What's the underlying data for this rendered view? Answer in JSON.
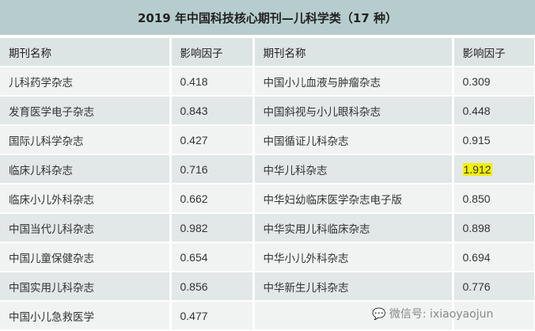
{
  "title": "2019 年中国科技核心期刊—儿科学类（17 种）",
  "headers": [
    "期刊名称",
    "影响因子",
    "期刊名称",
    "影响因子"
  ],
  "rows": [
    [
      "儿科药学杂志",
      "0.418",
      "中国小儿血液与肿瘤杂志",
      "0.309"
    ],
    [
      "发育医学电子杂志",
      "0.843",
      "中国斜视与小儿眼科杂志",
      "0.448"
    ],
    [
      "国际儿科学杂志",
      "0.427",
      "中国循证儿科杂志",
      "0.915"
    ],
    [
      "临床儿科杂志",
      "0.716",
      "中华儿科杂志",
      "1.912"
    ],
    [
      "临床小儿外科杂志",
      "0.662",
      "中华妇幼临床医学杂志电子版",
      "0.850"
    ],
    [
      "中国当代儿科杂志",
      "0.982",
      "中华实用儿科临床杂志",
      "0.898"
    ],
    [
      "中国儿童保健杂志",
      "0.654",
      "中华小儿外科杂志",
      "0.694"
    ],
    [
      "中国实用儿科杂志",
      "0.856",
      "中华新生儿科杂志",
      "0.776"
    ],
    [
      "中国小儿急救医学",
      "0.477",
      "",
      ""
    ]
  ],
  "highlight_color": "#f3f000",
  "watermark": "微信号: ixiaoyaojun"
}
